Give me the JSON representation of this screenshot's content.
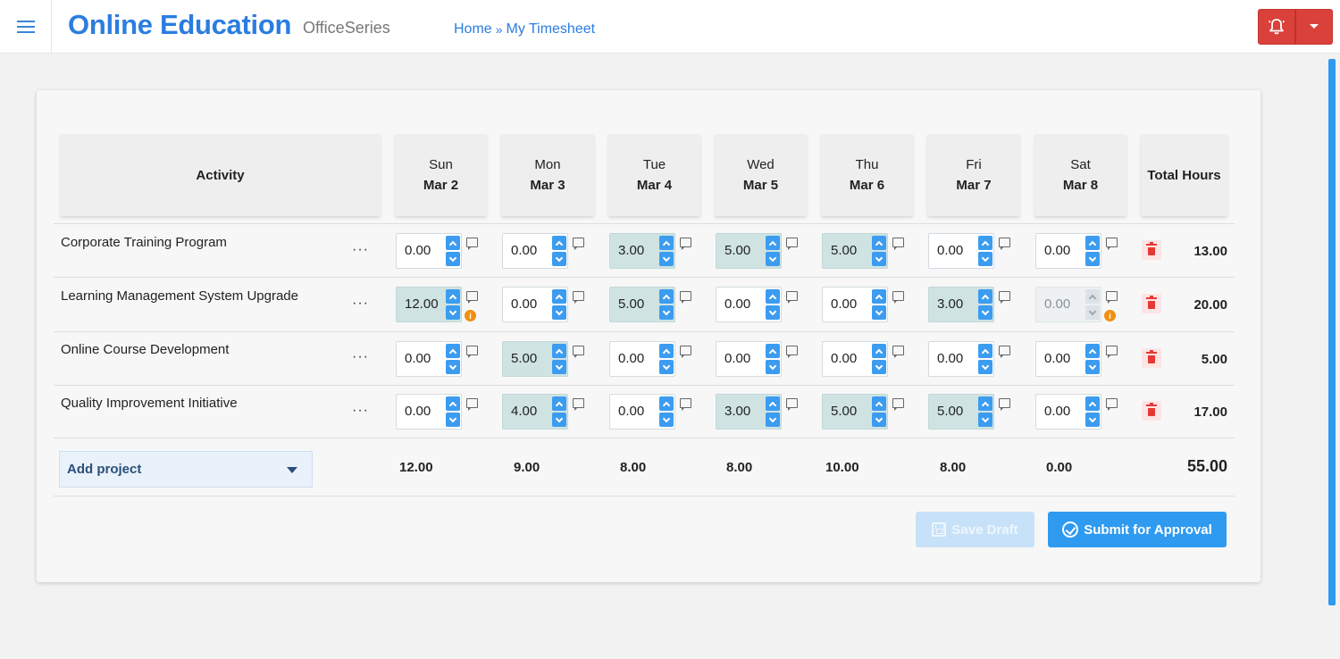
{
  "header": {
    "app_title": "Online Education",
    "app_subtitle": "OfficeSeries",
    "breadcrumb": {
      "home": "Home",
      "separator": "»",
      "current": "My Timesheet"
    }
  },
  "colors": {
    "accent": "#2b7de0",
    "primary_button": "#2e9af0",
    "alert_button": "#d9413a",
    "filled_cell": "#cfe3e3",
    "warning": "#f0900e",
    "delete": "#e53935"
  },
  "table": {
    "activity_header": "Activity",
    "total_header": "Total Hours",
    "days": [
      {
        "name": "Sun",
        "date": "Mar 2"
      },
      {
        "name": "Mon",
        "date": "Mar 3"
      },
      {
        "name": "Tue",
        "date": "Mar 4"
      },
      {
        "name": "Wed",
        "date": "Mar 5"
      },
      {
        "name": "Thu",
        "date": "Mar 6"
      },
      {
        "name": "Fri",
        "date": "Mar 7"
      },
      {
        "name": "Sat",
        "date": "Mar 8"
      }
    ],
    "rows": [
      {
        "activity": "Corporate Training Program",
        "more": "···",
        "hours": [
          "0.00",
          "0.00",
          "3.00",
          "5.00",
          "5.00",
          "0.00",
          "0.00"
        ],
        "total": "13.00"
      },
      {
        "activity": "Learning Management System Upgrade",
        "more": "···",
        "hours": [
          "12.00",
          "0.00",
          "5.00",
          "0.00",
          "0.00",
          "3.00",
          "0.00"
        ],
        "total": "20.00"
      },
      {
        "activity": "Online Course Development",
        "more": "···",
        "hours": [
          "0.00",
          "5.00",
          "0.00",
          "0.00",
          "0.00",
          "0.00",
          "0.00"
        ],
        "total": "5.00"
      },
      {
        "activity": "Quality Improvement Initiative",
        "more": "···",
        "hours": [
          "0.00",
          "4.00",
          "0.00",
          "3.00",
          "5.00",
          "5.00",
          "0.00"
        ],
        "total": "17.00"
      }
    ],
    "warnings": "i",
    "day_totals": [
      "12.00",
      "9.00",
      "8.00",
      "8.00",
      "10.00",
      "8.00",
      "0.00"
    ],
    "grand_total": "55.00"
  },
  "add_project": {
    "label": "Add project"
  },
  "actions": {
    "save_draft": "Save Draft",
    "submit": "Submit for Approval"
  },
  "icons": [
    "menu-icon",
    "bell-icon",
    "caret-down-icon",
    "chevron-up-icon",
    "chevron-down-icon",
    "comment-icon",
    "warning-icon",
    "trash-icon",
    "save-icon",
    "check-circle-icon"
  ]
}
